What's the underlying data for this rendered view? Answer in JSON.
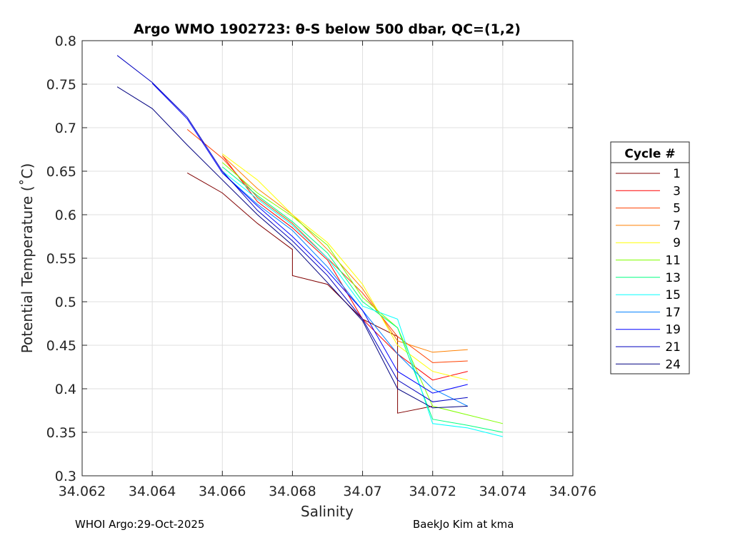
{
  "chart_data": {
    "type": "line",
    "title": "Argo WMO 1902723: θ-S below 500 dbar,  QC=(1,2)",
    "xlabel": "Salinity",
    "ylabel": "Potential Temperature (˚C)",
    "xlim": [
      34.062,
      34.076
    ],
    "ylim": [
      0.3,
      0.8
    ],
    "xticks": [
      34.062,
      34.064,
      34.066,
      34.068,
      34.07,
      34.072,
      34.074,
      34.076
    ],
    "xtick_labels": [
      "34.062",
      "34.064",
      "34.066",
      "34.068",
      "34.07",
      "34.072",
      "34.074",
      "34.076"
    ],
    "yticks": [
      0.3,
      0.35,
      0.4,
      0.45,
      0.5,
      0.55,
      0.6,
      0.65,
      0.7,
      0.75,
      0.8
    ],
    "ytick_labels": [
      "0.3",
      "0.35",
      "0.4",
      "0.45",
      "0.5",
      "0.55",
      "0.6",
      "0.65",
      "0.7",
      "0.75",
      "0.8"
    ],
    "grid": true,
    "legend": {
      "title": "Cycle #",
      "placement": "outside-right",
      "entries": [
        "1",
        "3",
        "5",
        "7",
        "9",
        "11",
        "13",
        "15",
        "17",
        "19",
        "21",
        "24"
      ]
    },
    "series": [
      {
        "name": "1",
        "color": "#800000",
        "x": [
          34.065,
          34.066,
          34.067,
          34.068,
          34.068,
          34.069,
          34.07,
          34.071,
          34.071,
          34.072
        ],
        "y": [
          0.648,
          0.625,
          0.59,
          0.56,
          0.53,
          0.52,
          0.48,
          0.46,
          0.372,
          0.38
        ]
      },
      {
        "name": "3",
        "color": "#ff0000",
        "x": [
          34.066,
          34.067,
          34.068,
          34.069,
          34.07,
          34.071,
          34.072,
          34.073
        ],
        "y": [
          0.668,
          0.615,
          0.585,
          0.548,
          0.48,
          0.44,
          0.41,
          0.42
        ]
      },
      {
        "name": "5",
        "color": "#ff4000",
        "x": [
          34.065,
          34.066,
          34.067,
          34.068,
          34.069,
          34.07,
          34.071,
          34.072,
          34.073
        ],
        "y": [
          0.698,
          0.665,
          0.62,
          0.59,
          0.55,
          0.51,
          0.46,
          0.43,
          0.432
        ]
      },
      {
        "name": "7",
        "color": "#ff8000",
        "x": [
          34.066,
          34.067,
          34.068,
          34.069,
          34.07,
          34.071,
          34.072,
          34.073
        ],
        "y": [
          0.668,
          0.63,
          0.6,
          0.56,
          0.515,
          0.455,
          0.442,
          0.445
        ]
      },
      {
        "name": "9",
        "color": "#ffff00",
        "x": [
          34.066,
          34.067,
          34.068,
          34.069,
          34.07,
          34.071,
          34.072,
          34.073
        ],
        "y": [
          0.67,
          0.64,
          0.6,
          0.568,
          0.52,
          0.45,
          0.42,
          0.41
        ]
      },
      {
        "name": "11",
        "color": "#80ff00",
        "x": [
          34.066,
          34.067,
          34.068,
          34.069,
          34.07,
          34.071,
          34.072,
          34.073,
          34.074
        ],
        "y": [
          0.66,
          0.625,
          0.598,
          0.565,
          0.505,
          0.47,
          0.38,
          0.37,
          0.36
        ]
      },
      {
        "name": "13",
        "color": "#00ff80",
        "x": [
          34.066,
          34.067,
          34.068,
          34.069,
          34.07,
          34.071,
          34.072,
          34.073,
          34.074
        ],
        "y": [
          0.655,
          0.622,
          0.592,
          0.556,
          0.5,
          0.47,
          0.365,
          0.358,
          0.35
        ]
      },
      {
        "name": "15",
        "color": "#00ffff",
        "x": [
          34.066,
          34.067,
          34.068,
          34.069,
          34.07,
          34.071,
          34.072,
          34.073,
          34.074
        ],
        "y": [
          0.65,
          0.618,
          0.588,
          0.55,
          0.495,
          0.48,
          0.36,
          0.355,
          0.345
        ]
      },
      {
        "name": "17",
        "color": "#0080ff",
        "x": [
          34.066,
          34.067,
          34.068,
          34.069,
          34.07,
          34.071,
          34.072,
          34.073
        ],
        "y": [
          0.648,
          0.612,
          0.582,
          0.54,
          0.49,
          0.44,
          0.4,
          0.38
        ]
      },
      {
        "name": "19",
        "color": "#0000ff",
        "x": [
          34.064,
          34.065,
          34.066,
          34.067,
          34.068,
          34.069,
          34.07,
          34.071,
          34.072,
          34.073
        ],
        "y": [
          0.751,
          0.71,
          0.648,
          0.61,
          0.575,
          0.535,
          0.49,
          0.42,
          0.395,
          0.405
        ]
      },
      {
        "name": "21",
        "color": "#0000bf",
        "x": [
          34.063,
          34.064,
          34.065,
          34.066,
          34.067,
          34.068,
          34.069,
          34.07,
          34.071,
          34.072,
          34.073
        ],
        "y": [
          0.783,
          0.752,
          0.712,
          0.65,
          0.605,
          0.57,
          0.53,
          0.48,
          0.41,
          0.385,
          0.39
        ]
      },
      {
        "name": "24",
        "color": "#000080",
        "x": [
          34.063,
          34.064,
          34.065,
          34.066,
          34.067,
          34.068,
          34.069,
          34.07,
          34.071,
          34.072,
          34.073
        ],
        "y": [
          0.747,
          0.722,
          0.68,
          0.64,
          0.6,
          0.565,
          0.522,
          0.478,
          0.4,
          0.378,
          0.38
        ]
      }
    ]
  },
  "footer": {
    "left": "WHOI Argo:29-Oct-2025",
    "right": "BaekJo Kim at kma"
  }
}
